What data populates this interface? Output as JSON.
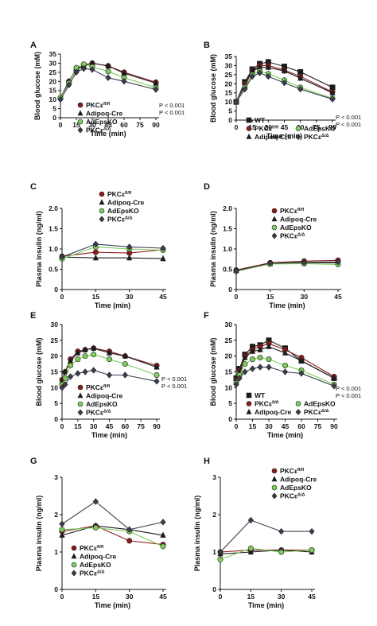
{
  "chart_data": [
    {
      "panel": "A",
      "type": "line",
      "xlabel": "Time (min)",
      "ylabel": "Blood glucose (mM)",
      "xticks": [
        0,
        15,
        30,
        45,
        60,
        75,
        90
      ],
      "xlim": [
        0,
        90
      ],
      "yticks": [
        0,
        5,
        10,
        15,
        20,
        25,
        30,
        35
      ],
      "ylim": [
        0,
        35
      ],
      "legend_position": "bottom-left",
      "annotations": [
        "P < 0.001",
        "P < 0.001"
      ],
      "series": [
        {
          "name": "PKCε fl/fl",
          "marker": "circle",
          "color": "#8b1a1a",
          "x": [
            0,
            8,
            15,
            22,
            30,
            45,
            60,
            90
          ],
          "y": [
            11,
            20,
            26,
            29,
            30,
            28.5,
            25,
            19.5
          ]
        },
        {
          "name": "Adipoq-Cre",
          "marker": "triangle",
          "color": "#1a1a1a",
          "x": [
            0,
            8,
            15,
            22,
            30,
            45,
            60,
            90
          ],
          "y": [
            11,
            20,
            27,
            28.5,
            30,
            28.5,
            24.5,
            19
          ]
        },
        {
          "name": "AdEpsKO",
          "marker": "circle",
          "color": "#7ccd5a",
          "x": [
            0,
            8,
            15,
            22,
            30,
            45,
            60,
            90
          ],
          "y": [
            11,
            19,
            27.5,
            29.5,
            28,
            25.5,
            22,
            16.5
          ]
        },
        {
          "name": "PKCε Δ/Δ",
          "marker": "diamond",
          "color": "#3c3c50",
          "x": [
            0,
            8,
            15,
            22,
            30,
            45,
            60,
            90
          ],
          "y": [
            10,
            18,
            25,
            27,
            26.5,
            22,
            20,
            15.5
          ]
        }
      ]
    },
    {
      "panel": "B",
      "type": "line",
      "xlabel": "Time (min)",
      "ylabel": "Blood glucose (mM)",
      "xticks": [
        0,
        15,
        30,
        45,
        60,
        75,
        90
      ],
      "xlim": [
        0,
        90
      ],
      "yticks": [
        0,
        5,
        10,
        15,
        20,
        25,
        30,
        35
      ],
      "ylim": [
        0,
        35
      ],
      "legend_position": "bottom-left",
      "annotations": [
        "P < 0.001",
        "P < 0.001"
      ],
      "series": [
        {
          "name": "WT",
          "marker": "square",
          "color": "#1a1a1a",
          "x": [
            0,
            8,
            15,
            22,
            30,
            45,
            60,
            90
          ],
          "y": [
            10,
            21,
            28,
            31,
            32,
            29.5,
            26.5,
            18
          ]
        },
        {
          "name": "PKCε fl/fl",
          "marker": "circle",
          "color": "#8b1a1a",
          "x": [
            0,
            8,
            15,
            22,
            30,
            45,
            60,
            90
          ],
          "y": [
            10,
            20,
            27,
            30,
            30,
            27.5,
            24,
            15.5
          ]
        },
        {
          "name": "Adipoq-Cre",
          "marker": "triangle",
          "color": "#1a1a1a",
          "x": [
            0,
            8,
            15,
            22,
            30,
            45,
            60,
            90
          ],
          "y": [
            10,
            19,
            27,
            29,
            29,
            27,
            23,
            15
          ]
        },
        {
          "name": "AdEpsKO",
          "marker": "circle",
          "color": "#7ccd5a",
          "x": [
            0,
            8,
            15,
            22,
            30,
            45,
            60,
            90
          ],
          "y": [
            10,
            18,
            25,
            27,
            25.5,
            22,
            18,
            12
          ]
        },
        {
          "name": "PKCε Δ/Δ",
          "marker": "diamond",
          "color": "#3c3c50",
          "x": [
            0,
            8,
            15,
            22,
            30,
            45,
            60,
            90
          ],
          "y": [
            10,
            17,
            24,
            26,
            24,
            20.5,
            17,
            11.5
          ]
        }
      ]
    },
    {
      "panel": "C",
      "type": "line",
      "xlabel": "Time (min)",
      "ylabel": "Plasma insulin (ng/ml)",
      "xticks": [
        0,
        15,
        30,
        45
      ],
      "xlim": [
        0,
        45
      ],
      "yticks": [
        0,
        0.5,
        1.0,
        1.5,
        2.0
      ],
      "ytick_labels": [
        "0",
        "0.5",
        "1.0",
        "1.5",
        "2.0"
      ],
      "ylim": [
        0,
        2.0
      ],
      "legend_position": "top-center",
      "series": [
        {
          "name": "PKCε fl/fl",
          "marker": "circle",
          "color": "#8b1a1a",
          "x": [
            0,
            15,
            30,
            45
          ],
          "y": [
            0.82,
            0.92,
            0.9,
            0.98
          ]
        },
        {
          "name": "Adipoq-Cre",
          "marker": "triangle",
          "color": "#1a1a1a",
          "x": [
            0,
            15,
            30,
            45
          ],
          "y": [
            0.8,
            0.78,
            0.78,
            0.76
          ]
        },
        {
          "name": "AdEpsKO",
          "marker": "circle",
          "color": "#7ccd5a",
          "x": [
            0,
            15,
            30,
            45
          ],
          "y": [
            0.76,
            1.05,
            1.0,
            0.97
          ]
        },
        {
          "name": "PKCε Δ/Δ",
          "marker": "diamond",
          "color": "#3c3c50",
          "x": [
            0,
            15,
            30,
            45
          ],
          "y": [
            0.8,
            1.12,
            1.05,
            1.02
          ]
        }
      ]
    },
    {
      "panel": "D",
      "type": "line",
      "xlabel": "Time (min)",
      "ylabel": "Plasma insulin (ng/ml)",
      "xticks": [
        0,
        15,
        30,
        45
      ],
      "xlim": [
        0,
        45
      ],
      "yticks": [
        0,
        0.5,
        1.0,
        1.5,
        2.0
      ],
      "ytick_labels": [
        "0",
        "0.5",
        "1.0",
        "1.5",
        "2.0"
      ],
      "ylim": [
        0,
        2.0
      ],
      "legend_position": "top-center",
      "series": [
        {
          "name": "PKCε fl/fl",
          "marker": "circle",
          "color": "#8b1a1a",
          "x": [
            0,
            15,
            30,
            45
          ],
          "y": [
            0.48,
            0.66,
            0.7,
            0.72
          ]
        },
        {
          "name": "Adipoq-Cre",
          "marker": "triangle",
          "color": "#1a1a1a",
          "x": [
            0,
            15,
            30,
            45
          ],
          "y": [
            0.47,
            0.64,
            0.66,
            0.66
          ]
        },
        {
          "name": "AdEpsKO",
          "marker": "circle",
          "color": "#7ccd5a",
          "x": [
            0,
            15,
            30,
            45
          ],
          "y": [
            0.45,
            0.63,
            0.64,
            0.62
          ]
        },
        {
          "name": "PKCε Δ/Δ",
          "marker": "diamond",
          "color": "#3c3c50",
          "x": [
            0,
            15,
            30,
            45
          ],
          "y": [
            0.46,
            0.65,
            0.67,
            0.68
          ]
        }
      ]
    },
    {
      "panel": "E",
      "type": "line",
      "xlabel": "Time (min)",
      "ylabel": "Blood glucose (mM)",
      "xticks": [
        0,
        15,
        30,
        45,
        60,
        75,
        90
      ],
      "xlim": [
        0,
        90
      ],
      "yticks": [
        0,
        5,
        10,
        15,
        20,
        25,
        30
      ],
      "ylim": [
        0,
        30
      ],
      "legend_position": "bottom-left",
      "annotations": [
        "P < 0.001",
        "P < 0.001"
      ],
      "series": [
        {
          "name": "PKCε fl/fl",
          "marker": "circle",
          "color": "#8b1a1a",
          "x": [
            0,
            3,
            8,
            15,
            22,
            30,
            45,
            60,
            90
          ],
          "y": [
            12.5,
            15,
            19,
            21.5,
            22,
            22.5,
            21.5,
            20,
            17
          ]
        },
        {
          "name": "Adipoq-Cre",
          "marker": "triangle",
          "color": "#1a1a1a",
          "x": [
            0,
            3,
            8,
            15,
            22,
            30,
            45,
            60,
            90
          ],
          "y": [
            12,
            15,
            18.5,
            21,
            22,
            22.5,
            21,
            20,
            16.5
          ]
        },
        {
          "name": "AdEpsKO",
          "marker": "circle",
          "color": "#7ccd5a",
          "x": [
            0,
            3,
            8,
            15,
            22,
            30,
            45,
            60,
            90
          ],
          "y": [
            11,
            13,
            17,
            19,
            20,
            20.5,
            19,
            17.5,
            14
          ]
        },
        {
          "name": "PKCε Δ/Δ",
          "marker": "diamond",
          "color": "#3c3c50",
          "x": [
            0,
            3,
            8,
            15,
            22,
            30,
            45,
            60,
            90
          ],
          "y": [
            10,
            11,
            13.5,
            14.5,
            15,
            15.5,
            14,
            14,
            12
          ]
        }
      ]
    },
    {
      "panel": "F",
      "type": "line",
      "xlabel": "Time (min)",
      "ylabel": "Blood glucose (mM)",
      "xticks": [
        0,
        15,
        30,
        45,
        60,
        75,
        90
      ],
      "xlim": [
        0,
        90
      ],
      "yticks": [
        0,
        5,
        10,
        15,
        20,
        25,
        30
      ],
      "ylim": [
        0,
        30
      ],
      "legend_position": "bottom-left",
      "annotations": [
        "P < 0.001",
        "P < 0.001"
      ],
      "series": [
        {
          "name": "WT",
          "marker": "square",
          "color": "#1a1a1a",
          "x": [
            0,
            3,
            8,
            15,
            22,
            30,
            45,
            60,
            90
          ],
          "y": [
            13,
            16,
            20.5,
            23,
            23.5,
            25,
            22.5,
            18.5,
            13
          ]
        },
        {
          "name": "PKCε fl/fl",
          "marker": "circle",
          "color": "#8b1a1a",
          "x": [
            0,
            3,
            8,
            15,
            22,
            30,
            45,
            60,
            90
          ],
          "y": [
            12.5,
            15.5,
            20,
            22,
            23,
            24,
            22,
            19.5,
            13.5
          ]
        },
        {
          "name": "Adipoq-Cre",
          "marker": "triangle",
          "color": "#1a1a1a",
          "x": [
            0,
            3,
            8,
            15,
            22,
            30,
            45,
            60,
            90
          ],
          "y": [
            12,
            15,
            19.5,
            21.5,
            22,
            23,
            21,
            18.5,
            13
          ]
        },
        {
          "name": "AdEpsKO",
          "marker": "circle",
          "color": "#7ccd5a",
          "x": [
            0,
            3,
            8,
            15,
            22,
            30,
            45,
            60,
            90
          ],
          "y": [
            11.5,
            14,
            17.5,
            19,
            19.5,
            19,
            17,
            15.5,
            11
          ]
        },
        {
          "name": "PKCε Δ/Δ",
          "marker": "diamond",
          "color": "#3c3c50",
          "x": [
            0,
            3,
            8,
            15,
            22,
            30,
            45,
            60,
            90
          ],
          "y": [
            11,
            13,
            15,
            16,
            16.5,
            16.5,
            15,
            14.5,
            10.5
          ]
        }
      ]
    },
    {
      "panel": "G",
      "type": "line",
      "xlabel": "Time (min)",
      "ylabel": "Plasma insulin (ng/ml)",
      "xticks": [
        0,
        15,
        30,
        45
      ],
      "xlim": [
        0,
        45
      ],
      "yticks": [
        0,
        1,
        2,
        3
      ],
      "ylim": [
        0,
        3
      ],
      "legend_position": "bottom-left",
      "series": [
        {
          "name": "PKCε fl/fl",
          "marker": "circle",
          "color": "#8b1a1a",
          "x": [
            0,
            15,
            30,
            45
          ],
          "y": [
            1.55,
            1.7,
            1.3,
            1.2
          ]
        },
        {
          "name": "Adipoq-Cre",
          "marker": "triangle",
          "color": "#1a1a1a",
          "x": [
            0,
            15,
            30,
            45
          ],
          "y": [
            1.45,
            1.7,
            1.6,
            1.45
          ]
        },
        {
          "name": "AdEpsKO",
          "marker": "circle",
          "color": "#7ccd5a",
          "x": [
            0,
            15,
            30,
            45
          ],
          "y": [
            1.6,
            1.65,
            1.55,
            1.15
          ]
        },
        {
          "name": "PKCε Δ/Δ",
          "marker": "diamond",
          "color": "#3c3c50",
          "x": [
            0,
            15,
            30,
            45
          ],
          "y": [
            1.75,
            2.35,
            1.6,
            1.8
          ]
        }
      ]
    },
    {
      "panel": "H",
      "type": "line",
      "xlabel": "Time (min)",
      "ylabel": "Plasma insulin (ng/ml)",
      "xticks": [
        0,
        15,
        30,
        45
      ],
      "xlim": [
        0,
        45
      ],
      "yticks": [
        0,
        1,
        2,
        3
      ],
      "ylim": [
        0,
        3
      ],
      "legend_position": "top-right",
      "series": [
        {
          "name": "PKCε fl/fl",
          "marker": "circle",
          "color": "#8b1a1a",
          "x": [
            0,
            15,
            30,
            45
          ],
          "y": [
            1.0,
            1.05,
            1.05,
            1.05
          ]
        },
        {
          "name": "Adipoq-Cre",
          "marker": "triangle",
          "color": "#1a1a1a",
          "x": [
            0,
            15,
            30,
            45
          ],
          "y": [
            0.95,
            1.0,
            1.05,
            1.0
          ]
        },
        {
          "name": "AdEpsKO",
          "marker": "circle",
          "color": "#7ccd5a",
          "x": [
            0,
            15,
            30,
            45
          ],
          "y": [
            0.8,
            1.1,
            1.0,
            1.05
          ]
        },
        {
          "name": "PKCε Δ/Δ",
          "marker": "diamond",
          "color": "#3c3c50",
          "x": [
            0,
            15,
            30,
            45
          ],
          "y": [
            1.0,
            1.85,
            1.55,
            1.55
          ]
        }
      ]
    }
  ]
}
